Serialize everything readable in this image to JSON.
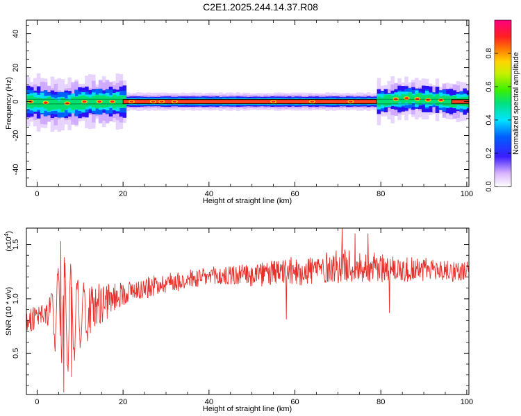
{
  "title": "C2E1.2025.244.14.37.R08",
  "chart_data": [
    {
      "type": "heatmap",
      "xlabel": "Height of straight line (km)",
      "ylabel": "Frequency (Hz)",
      "xlim": [
        -2.5,
        100.5
      ],
      "ylim": [
        -50,
        48
      ],
      "xticks": [
        0,
        20,
        40,
        60,
        80,
        100
      ],
      "yticks": [
        -40,
        -20,
        0,
        20,
        40
      ],
      "colorbar": {
        "label": "Normalized spectral amplitude",
        "range": [
          0,
          1
        ],
        "ticks": [
          0.0,
          0.2,
          0.4,
          0.6,
          0.8
        ]
      },
      "band_center_hz": [
        {
          "x": -2.5,
          "f": 0
        },
        {
          "x": 0,
          "f": -0.5
        },
        {
          "x": 3,
          "f": -1.5
        },
        {
          "x": 5,
          "f": -2
        },
        {
          "x": 8,
          "f": -1
        },
        {
          "x": 12,
          "f": 0
        },
        {
          "x": 20,
          "f": 0
        },
        {
          "x": 79,
          "f": 0
        },
        {
          "x": 82,
          "f": 1
        },
        {
          "x": 86,
          "f": 2
        },
        {
          "x": 90,
          "f": 1.5
        },
        {
          "x": 93,
          "f": 1
        },
        {
          "x": 96,
          "f": 0
        },
        {
          "x": 100.5,
          "f": 0
        }
      ]
    },
    {
      "type": "line",
      "xlabel": "Height of straight line (km)",
      "ylabel": "SNR (10 * v/v)",
      "multiplier": "(x10",
      "multiplier_exp": "4",
      "xlim": [
        -2.5,
        100.5
      ],
      "ylim": [
        0.12,
        1.65
      ],
      "xticks": [
        0,
        20,
        40,
        60,
        80,
        100
      ],
      "yticks": [
        0.5,
        1.0,
        1.5
      ],
      "ytick_labels": [
        "0.5",
        "1.0",
        "1.5"
      ],
      "line_color": "#e8302b",
      "envelope": [
        {
          "x": -2.5,
          "mean": 0.8,
          "amp": 0.12
        },
        {
          "x": 2,
          "mean": 0.85,
          "amp": 0.12
        },
        {
          "x": 5,
          "mean": 0.9,
          "amp": 0.45
        },
        {
          "x": 7,
          "mean": 0.85,
          "amp": 0.55
        },
        {
          "x": 10,
          "mean": 0.85,
          "amp": 0.35
        },
        {
          "x": 15,
          "mean": 0.95,
          "amp": 0.2
        },
        {
          "x": 20,
          "mean": 1.05,
          "amp": 0.12
        },
        {
          "x": 30,
          "mean": 1.15,
          "amp": 0.1
        },
        {
          "x": 40,
          "mean": 1.2,
          "amp": 0.1
        },
        {
          "x": 50,
          "mean": 1.22,
          "amp": 0.12
        },
        {
          "x": 60,
          "mean": 1.25,
          "amp": 0.14
        },
        {
          "x": 70,
          "mean": 1.3,
          "amp": 0.17
        },
        {
          "x": 80,
          "mean": 1.28,
          "amp": 0.15
        },
        {
          "x": 90,
          "mean": 1.27,
          "amp": 0.12
        },
        {
          "x": 100.5,
          "mean": 1.25,
          "amp": 0.1
        }
      ],
      "notable_points": [
        {
          "x": 5.5,
          "y": 1.53
        },
        {
          "x": 6.2,
          "y": 0.14
        },
        {
          "x": 8,
          "y": 0.28
        },
        {
          "x": 58,
          "y": 0.81
        },
        {
          "x": 71,
          "y": 1.65
        },
        {
          "x": 74,
          "y": 1.6
        },
        {
          "x": 77,
          "y": 1.6
        },
        {
          "x": 82,
          "y": 0.87
        }
      ]
    }
  ]
}
